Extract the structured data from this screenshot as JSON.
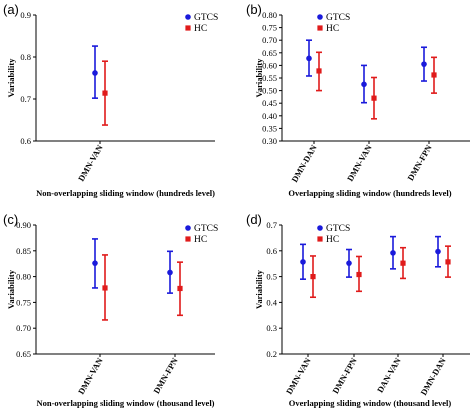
{
  "colors": {
    "GTCS": "#1a1adb",
    "HC": "#e01b1b",
    "axis": "#000000"
  },
  "chart_data": [
    {
      "panel": "(a)",
      "type": "scatter",
      "error_bars": true,
      "ylabel": "Variability",
      "xlabel": "Non-overlapping sliding window (hundreds level)",
      "categories": [
        "DMN-VAN"
      ],
      "ylim": [
        0.6,
        0.9
      ],
      "yticks": [
        "0.6",
        "0.7",
        "0.8",
        "0.9"
      ],
      "legend": [
        "GTCS",
        "HC"
      ],
      "legend_position": "top-right",
      "series": [
        {
          "name": "GTCS",
          "mean": [
            0.762
          ],
          "lower": [
            0.702
          ],
          "upper": [
            0.826
          ]
        },
        {
          "name": "HC",
          "mean": [
            0.714
          ],
          "lower": [
            0.638
          ],
          "upper": [
            0.79
          ]
        }
      ]
    },
    {
      "panel": "(b)",
      "type": "scatter",
      "error_bars": true,
      "ylabel": "Variability",
      "xlabel": "Overlapping sliding window (hundreds level)",
      "categories": [
        "DMN-DAN",
        "DMN-VAN",
        "DMN-FPN"
      ],
      "ylim": [
        0.3,
        0.8
      ],
      "yticks": [
        "0.30",
        "0.35",
        "0.40",
        "0.45",
        "0.50",
        "0.55",
        "0.60",
        "0.65",
        "0.70",
        "0.75",
        "0.80"
      ],
      "legend": [
        "GTCS",
        "HC"
      ],
      "legend_position": "top-right",
      "series": [
        {
          "name": "GTCS",
          "mean": [
            0.628,
            0.525,
            0.605
          ],
          "lower": [
            0.558,
            0.452,
            0.538
          ],
          "upper": [
            0.7,
            0.6,
            0.672
          ]
        },
        {
          "name": "HC",
          "mean": [
            0.578,
            0.47,
            0.562
          ],
          "lower": [
            0.5,
            0.388,
            0.49
          ],
          "upper": [
            0.652,
            0.552,
            0.632
          ]
        }
      ]
    },
    {
      "panel": "(c)",
      "type": "scatter",
      "error_bars": true,
      "ylabel": "Variability",
      "xlabel": "Non-overlapping sliding window (thousand level)",
      "categories": [
        "DMN-VAN",
        "DMN-FPN"
      ],
      "ylim": [
        0.65,
        0.9
      ],
      "yticks": [
        "0.65",
        "0.70",
        "0.75",
        "0.80",
        "0.85",
        "0.90"
      ],
      "legend": [
        "GTCS",
        "HC"
      ],
      "legend_position": "top-right",
      "series": [
        {
          "name": "GTCS",
          "mean": [
            0.826,
            0.808
          ],
          "lower": [
            0.778,
            0.768
          ],
          "upper": [
            0.873,
            0.849
          ]
        },
        {
          "name": "HC",
          "mean": [
            0.778,
            0.777
          ],
          "lower": [
            0.716,
            0.725
          ],
          "upper": [
            0.842,
            0.828
          ]
        }
      ]
    },
    {
      "panel": "(d)",
      "type": "scatter",
      "error_bars": true,
      "ylabel": "Variability",
      "xlabel": "Overlapping sliding window (thousand level)",
      "categories": [
        "DMN-VAN",
        "DMN-FPN",
        "DAN-VAN",
        "DMN-DAN"
      ],
      "ylim": [
        0.2,
        0.7
      ],
      "yticks": [
        "0.2",
        "0.3",
        "0.4",
        "0.5",
        "0.6",
        "0.7"
      ],
      "legend": [
        "GTCS",
        "HC"
      ],
      "legend_position": "top-right",
      "series": [
        {
          "name": "GTCS",
          "mean": [
            0.557,
            0.552,
            0.592,
            0.597
          ],
          "lower": [
            0.49,
            0.498,
            0.53,
            0.538
          ],
          "upper": [
            0.625,
            0.605,
            0.655,
            0.655
          ]
        },
        {
          "name": "HC",
          "mean": [
            0.5,
            0.508,
            0.552,
            0.557
          ],
          "lower": [
            0.42,
            0.443,
            0.493,
            0.498
          ],
          "upper": [
            0.58,
            0.578,
            0.612,
            0.618
          ]
        }
      ]
    }
  ]
}
